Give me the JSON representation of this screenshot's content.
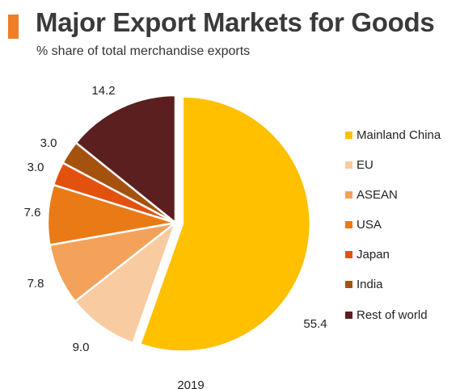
{
  "header": {
    "title": "Major Export Markets for Goods",
    "subtitle": "% share of total merchandise exports",
    "accent_color": "#F07E26"
  },
  "chart_data": {
    "type": "pie",
    "title": "Major Export Markets for Goods",
    "subtitle": "% share of total merchandise exports",
    "caption": "2019",
    "legend_position": "right",
    "slices": [
      {
        "label": "Mainland China",
        "value": 55.4,
        "value_label": "55.4",
        "color": "#FFC000",
        "exploded": true
      },
      {
        "label": "EU",
        "value": 9.0,
        "value_label": "9.0",
        "color": "#F8CBA0"
      },
      {
        "label": "ASEAN",
        "value": 7.8,
        "value_label": "7.8",
        "color": "#F4A25A"
      },
      {
        "label": "USA",
        "value": 7.6,
        "value_label": "7.6",
        "color": "#E97A16"
      },
      {
        "label": "Japan",
        "value": 3.0,
        "value_label": "3.0",
        "color": "#E3510E"
      },
      {
        "label": "India",
        "value": 3.0,
        "value_label": "3.0",
        "color": "#A5520F"
      },
      {
        "label": "Rest of world",
        "value": 14.2,
        "value_label": "14.2",
        "color": "#5B1F1F"
      }
    ]
  }
}
